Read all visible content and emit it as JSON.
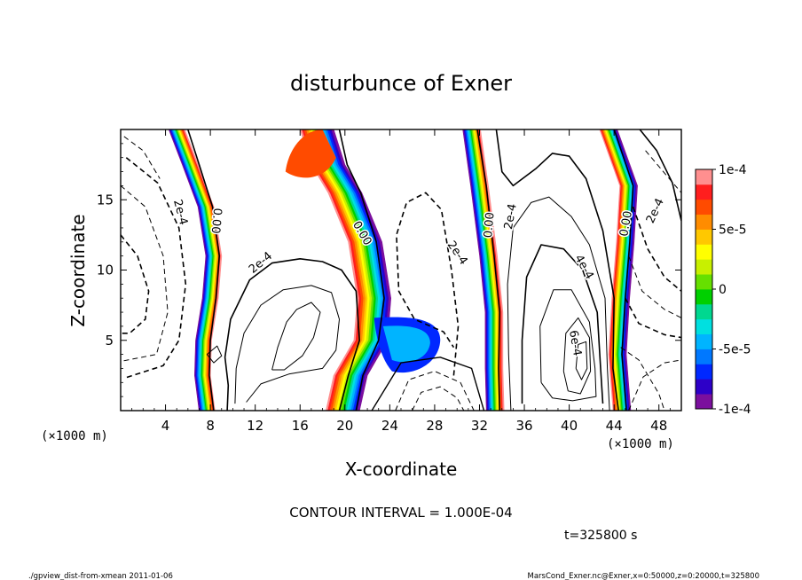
{
  "chart_data": {
    "type": "contour",
    "title": "disturbunce of Exner",
    "xlabel": "X-coordinate",
    "ylabel": "Z-coordinate",
    "x_unit": "(×1000 m)",
    "z_unit": "(×1000 m)",
    "xlim": [
      0,
      50
    ],
    "ylim": [
      0,
      20
    ],
    "x_ticks": [
      4,
      8,
      12,
      16,
      20,
      24,
      28,
      32,
      36,
      40,
      44,
      48
    ],
    "x_tick_labels": [
      "4",
      "8",
      "12",
      "16",
      "20",
      "24",
      "28",
      "32",
      "36",
      "40",
      "44",
      "48"
    ],
    "y_ticks": [
      5,
      10,
      15
    ],
    "y_tick_labels": [
      "5",
      "10",
      "15"
    ],
    "contour_interval_text": "CONTOUR INTERVAL = 1.000E-04",
    "time_text": "t=325800 s",
    "footer_left": "./gpview_dist-from-xmean  2011-01-06",
    "footer_right": "MarsCond_Exner.nc@Exner,x=0:50000,z=0:20000,t=325800",
    "colorbar": {
      "range": [
        -0.0001,
        0.0001
      ],
      "tick_values": [
        0.0001,
        5e-05,
        0,
        -5e-05,
        -0.0001
      ],
      "tick_labels": [
        "1e-4",
        "5e-5",
        "0",
        "-5e-5",
        "-1e-4"
      ],
      "colors": [
        "#7b0f9e",
        "#2d00c8",
        "#0028ff",
        "#0078ff",
        "#00b4ff",
        "#00e0e0",
        "#00d890",
        "#00d000",
        "#66e000",
        "#c8f000",
        "#ffff00",
        "#ffc800",
        "#ff8c00",
        "#ff4b00",
        "#ff1e1e",
        "#ff8f8f"
      ]
    },
    "contour_labels": [
      {
        "text": "2e-4",
        "x": 5.3,
        "z": 14.1,
        "rot": 75
      },
      {
        "text": "0.00",
        "x": 8.5,
        "z": 13.5,
        "rot": 95
      },
      {
        "text": "2e-4",
        "x": 12.5,
        "z": 10.5,
        "rot": -40
      },
      {
        "text": "0.00",
        "x": 21.5,
        "z": 12.6,
        "rot": 60
      },
      {
        "text": "2e-4",
        "x": 30,
        "z": 11.2,
        "rot": 55
      },
      {
        "text": "0.00",
        "x": 32.9,
        "z": 13.2,
        "rot": -85
      },
      {
        "text": "2e-4",
        "x": 34.8,
        "z": 13.8,
        "rot": -80
      },
      {
        "text": "4e-4",
        "x": 41.3,
        "z": 10.2,
        "rot": 60
      },
      {
        "text": "6e-4",
        "x": 40.5,
        "z": 4.8,
        "rot": 80
      },
      {
        "text": "0.00",
        "x": 45.1,
        "z": 13.3,
        "rot": -80
      },
      {
        "text": "2e-4",
        "x": 47.7,
        "z": 14.2,
        "rot": -65
      }
    ]
  }
}
